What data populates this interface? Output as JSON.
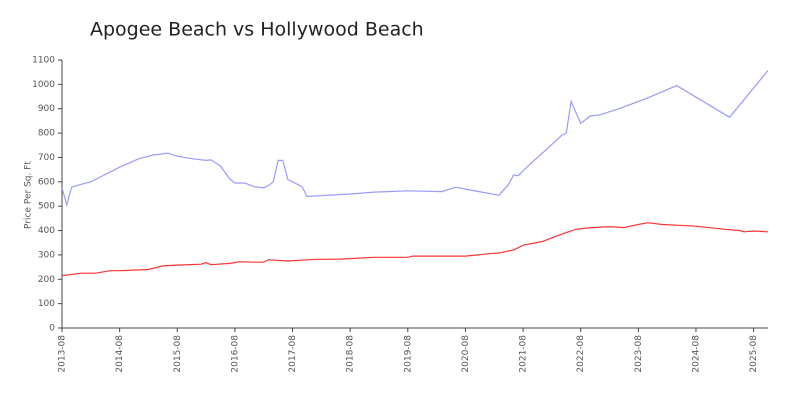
{
  "chart_data": {
    "type": "line",
    "title": "Apogee Beach vs Hollywood Beach",
    "y_label": "Price Per Sq. Ft",
    "xlim": [
      "2013-08",
      "2025-11"
    ],
    "xticks": [
      "2013-08",
      "2014-08",
      "2015-08",
      "2016-08",
      "2017-08",
      "2018-08",
      "2019-08",
      "2020-08",
      "2021-08",
      "2022-08",
      "2023-08",
      "2024-08",
      "2025-08"
    ],
    "ylim": [
      0,
      1100
    ],
    "yticks": [
      0,
      100,
      200,
      300,
      400,
      500,
      600,
      700,
      800,
      900,
      1000,
      1100
    ],
    "grid": false,
    "series": [
      {
        "color": "#9a9aff",
        "x": [
          "2013-08",
          "2013-09",
          "2013-10",
          "2013-12",
          "2014-02",
          "2014-04",
          "2014-08",
          "2014-12",
          "2015-03",
          "2015-06",
          "2015-08",
          "2015-11",
          "2016-02",
          "2016-03",
          "2016-05",
          "2016-07",
          "2016-08",
          "2016-10",
          "2016-12",
          "2017-02",
          "2017-03",
          "2017-04",
          "2017-05",
          "2017-06",
          "2017-07",
          "2017-10",
          "2017-11",
          "2018-02",
          "2018-08",
          "2019-01",
          "2019-04",
          "2019-08",
          "2020-03",
          "2020-06",
          "2020-08",
          "2021-03",
          "2021-05",
          "2021-06",
          "2021-07",
          "2021-09",
          "2022-01",
          "2022-04",
          "2022-05",
          "2022-06",
          "2022-08",
          "2022-10",
          "2022-12",
          "2023-04",
          "2023-10",
          "2024-04",
          "2025-03",
          "2025-11"
        ],
        "values": [
          575,
          505,
          578,
          590,
          600,
          620,
          660,
          695,
          710,
          718,
          705,
          695,
          688,
          690,
          665,
          610,
          595,
          595,
          580,
          575,
          585,
          600,
          688,
          688,
          610,
          580,
          540,
          543,
          550,
          558,
          560,
          563,
          560,
          578,
          570,
          545,
          590,
          628,
          625,
          665,
          735,
          790,
          800,
          930,
          840,
          870,
          875,
          900,
          945,
          995,
          865,
          1057
        ]
      },
      {
        "color": "#ff3333",
        "x": [
          "2013-08",
          "2013-12",
          "2014-03",
          "2014-06",
          "2014-08",
          "2015-02",
          "2015-05",
          "2015-08",
          "2016-01",
          "2016-02",
          "2016-03",
          "2016-07",
          "2016-09",
          "2016-12",
          "2017-02",
          "2017-03",
          "2017-07",
          "2018-01",
          "2018-06",
          "2018-08",
          "2019-01",
          "2019-08",
          "2019-09",
          "2020-08",
          "2021-01",
          "2021-03",
          "2021-06",
          "2021-08",
          "2021-12",
          "2022-04",
          "2022-07",
          "2022-09",
          "2023-01",
          "2023-03",
          "2023-05",
          "2023-08",
          "2023-10",
          "2024-01",
          "2024-04",
          "2024-08",
          "2025-02",
          "2025-05",
          "2025-06",
          "2025-08",
          "2025-11"
        ],
        "values": [
          215,
          225,
          225,
          235,
          235,
          240,
          255,
          258,
          262,
          268,
          260,
          265,
          272,
          270,
          270,
          280,
          275,
          282,
          283,
          285,
          290,
          290,
          295,
          295,
          305,
          308,
          320,
          340,
          355,
          385,
          405,
          410,
          415,
          415,
          412,
          425,
          432,
          425,
          422,
          418,
          405,
          400,
          395,
          398,
          395
        ]
      }
    ]
  }
}
